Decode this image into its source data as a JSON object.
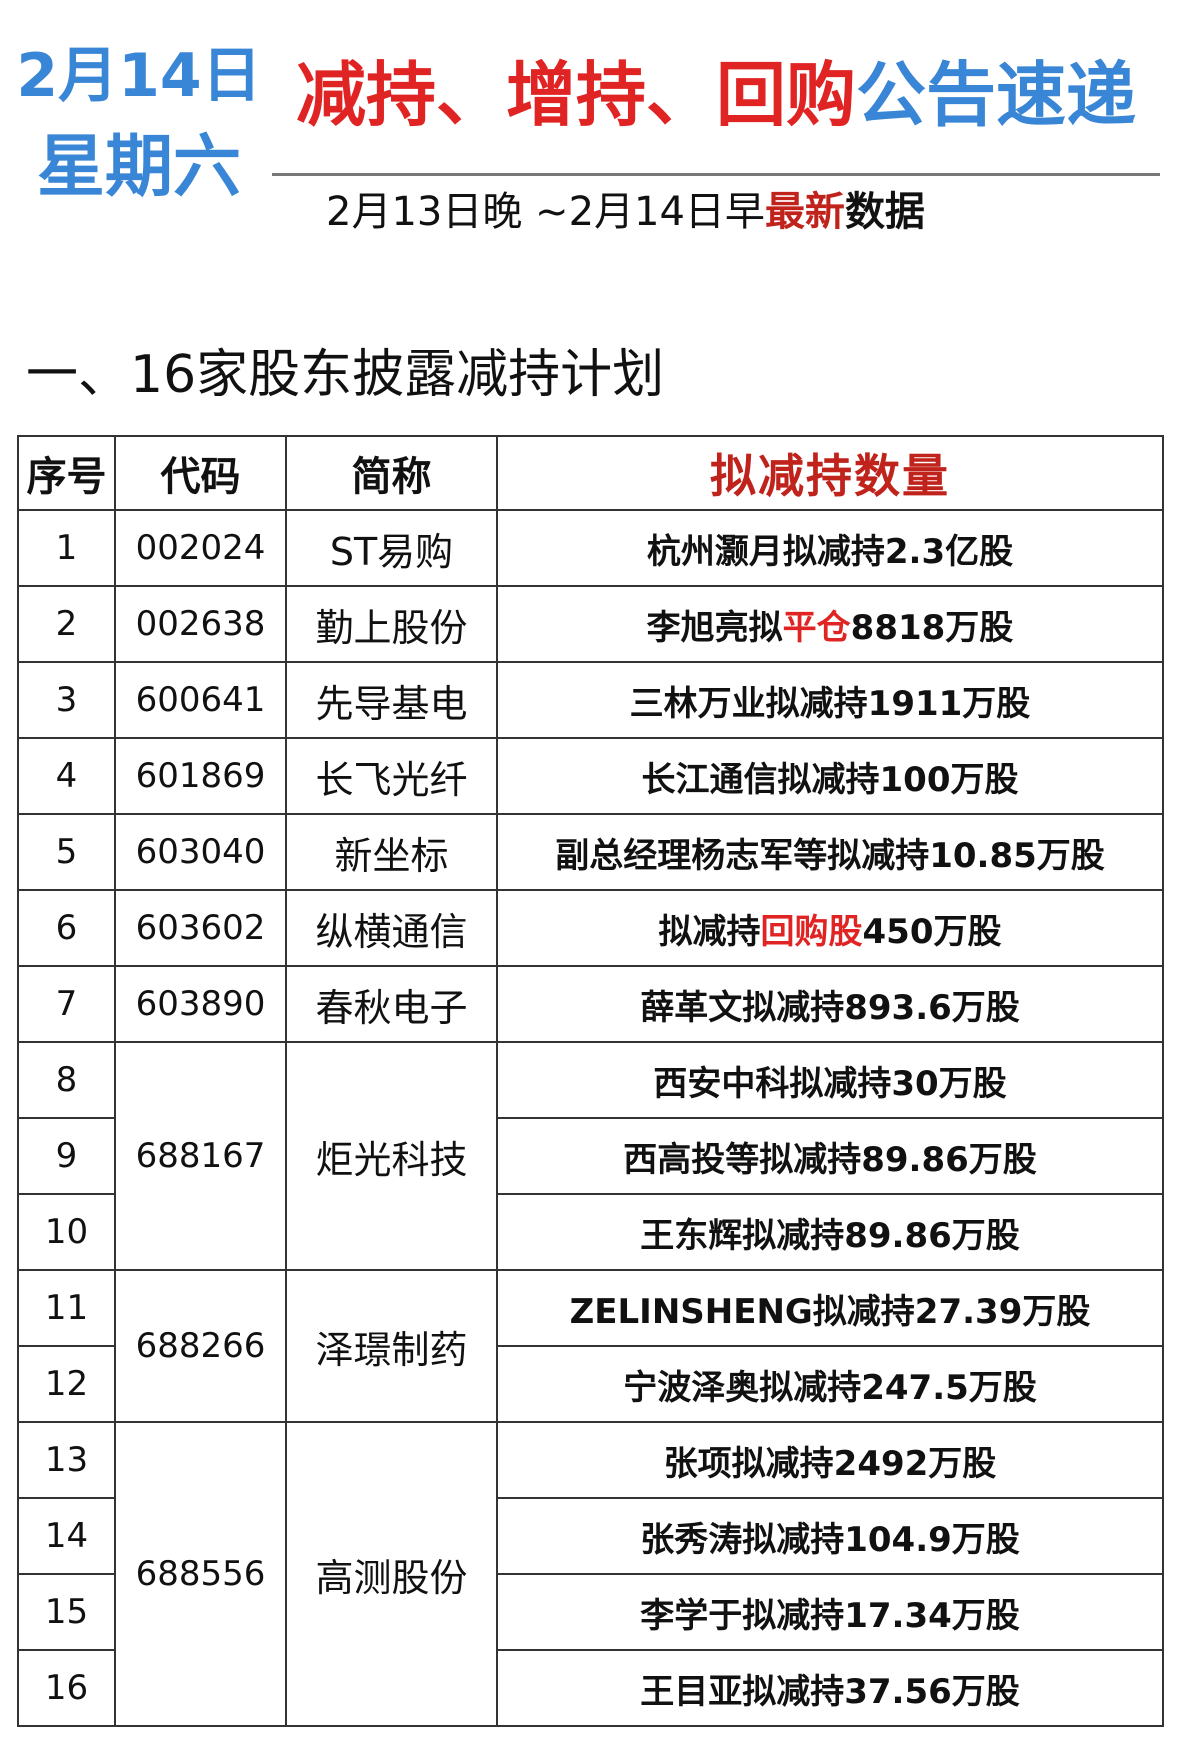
{
  "header": {
    "date_line": "2月14日",
    "weekday": "星期六",
    "title_red": "减持、增持、回购",
    "title_blue": "公告速递",
    "subtitle_prefix": "2月13日晚 ~2月14日早",
    "subtitle_highlight": "最新",
    "subtitle_suffix": "数据"
  },
  "section_title": "一、16家股东披露减持计划",
  "table": {
    "headers": [
      "序号",
      "代码",
      "简称",
      "拟减持数量"
    ],
    "rows": [
      {
        "seq": "1",
        "code": "002024",
        "name": "ST易购",
        "plan": [
          "杭州灏月拟减持2.3亿股"
        ]
      },
      {
        "seq": "2",
        "code": "002638",
        "name": "勤上股份",
        "plan": [
          "李旭亮拟",
          "平仓",
          "8818万股"
        ]
      },
      {
        "seq": "3",
        "code": "600641",
        "name": "先导基电",
        "plan": [
          "三林万业拟减持1911万股"
        ]
      },
      {
        "seq": "4",
        "code": "601869",
        "name": "长飞光纤",
        "plan": [
          "长江通信拟减持100万股"
        ]
      },
      {
        "seq": "5",
        "code": "603040",
        "name": "新坐标",
        "plan": [
          "副总经理杨志军等拟减持10.85万股"
        ]
      },
      {
        "seq": "6",
        "code": "603602",
        "name": "纵横通信",
        "plan": [
          "拟减持",
          "回购股",
          "450万股"
        ]
      },
      {
        "seq": "7",
        "code": "603890",
        "name": "春秋电子",
        "plan": [
          "薛革文拟减持893.6万股"
        ]
      },
      {
        "seq": "8",
        "code": "688167",
        "name": "炬光科技",
        "plan": [
          "西安中科拟减持30万股"
        ]
      },
      {
        "seq": "9",
        "plan": [
          "西高投等拟减持89.86万股"
        ]
      },
      {
        "seq": "10",
        "plan": [
          "王东辉拟减持89.86万股"
        ]
      },
      {
        "seq": "11",
        "code": "688266",
        "name": "泽璟制药",
        "plan": [
          "ZELINSHENG拟减持27.39万股"
        ]
      },
      {
        "seq": "12",
        "plan": [
          "宁波泽奥拟减持247.5万股"
        ]
      },
      {
        "seq": "13",
        "code": "688556",
        "name": "高测股份",
        "plan": [
          "张项拟减持2492万股"
        ]
      },
      {
        "seq": "14",
        "plan": [
          "张秀涛拟减持104.9万股"
        ]
      },
      {
        "seq": "15",
        "plan": [
          "李学于拟减持17.34万股"
        ]
      },
      {
        "seq": "16",
        "plan": [
          "王目亚拟减持37.56万股"
        ]
      }
    ]
  },
  "colors": {
    "red": "#e02424",
    "blue": "#3a86d6",
    "header_red": "#c0221c"
  }
}
